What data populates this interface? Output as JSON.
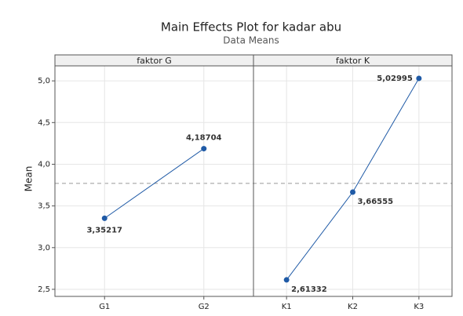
{
  "chart_data": {
    "type": "line",
    "title": "Main Effects Plot for kadar abu",
    "subtitle": "Data Means",
    "ylabel": "Mean",
    "ylim": [
      2.415,
      5.18
    ],
    "yticks": [
      {
        "value": 2.5,
        "label": "2,5"
      },
      {
        "value": 3.0,
        "label": "3,0"
      },
      {
        "value": 3.5,
        "label": "3,5"
      },
      {
        "value": 4.0,
        "label": "4,0"
      },
      {
        "value": 4.5,
        "label": "4,5"
      },
      {
        "value": 5.0,
        "label": "5,0"
      }
    ],
    "reference_line": 3.77,
    "grid": true,
    "color": "#1f5aa6",
    "panels": [
      {
        "title": "faktor G",
        "categories": [
          "G1",
          "G2"
        ],
        "values": [
          3.35217,
          4.18704
        ],
        "value_labels": [
          "3,35217",
          "4,18704"
        ]
      },
      {
        "title": "faktor K",
        "categories": [
          "K1",
          "K2",
          "K3"
        ],
        "values": [
          2.61332,
          3.66555,
          5.02995
        ],
        "value_labels": [
          "2,61332",
          "3,66555",
          "5,02995"
        ]
      }
    ]
  }
}
